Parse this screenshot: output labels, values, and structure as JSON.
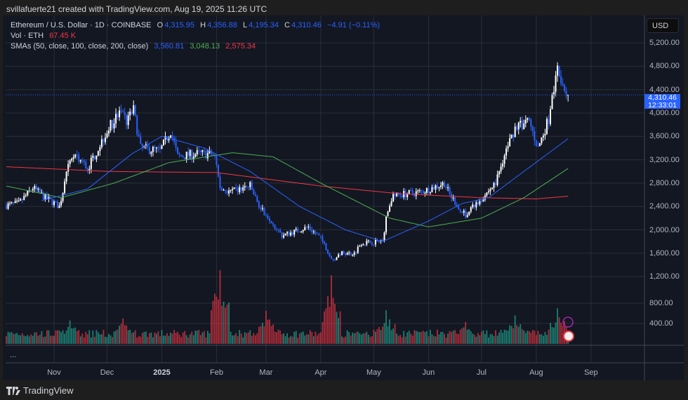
{
  "credit": "svillafuerte21 created with TradingView.com, Aug 19, 2025 11:26 UTC",
  "legend": {
    "symbol": "Ethereum / U.S. Dollar · 1D · COINBASE",
    "o_label": "O",
    "o": "4,315.95",
    "h_label": "H",
    "h": "4,356.88",
    "l_label": "L",
    "l": "4,195.34",
    "c_label": "C",
    "c": "4,310.46",
    "change": "−4.91 (−0.11%)",
    "vol_label": "Vol · ETH",
    "vol": "67.45 K",
    "sma_label": "SMAs (50, close, 100, close, 200, close)",
    "sma50": "3,560.81",
    "sma100": "3,048.13",
    "sma200": "2,575.34"
  },
  "currency_button": "USD",
  "last_price": {
    "price": "4,310.46",
    "countdown": "12:33:01"
  },
  "more_label": "...",
  "brand": "TradingView",
  "colors": {
    "up": "#ffffff",
    "down": "#2962ff",
    "vol_up": "#22ab94",
    "vol_down": "#f23645",
    "sma50": "#2962ff",
    "sma100": "#4caf50",
    "sma200": "#f23645",
    "bg": "#131722",
    "grid": "#2a2e39"
  },
  "chart_data": {
    "type": "candlestick",
    "timeframe": "1D",
    "price_ticks": [
      "5,200.00",
      "4,800.00",
      "4,400.00",
      "4,000.00",
      "3,600.00",
      "3,200.00",
      "2,800.00",
      "2,400.00",
      "2,000.00",
      "1,600.00",
      "1,200.00",
      "800.00",
      "400.00"
    ],
    "price_tick_values": [
      5200,
      4800,
      4400,
      4000,
      3600,
      3200,
      2800,
      2400,
      2000,
      1600,
      1200,
      800,
      400
    ],
    "x_ticks": [
      {
        "label": "Nov",
        "date": "2024-11-01"
      },
      {
        "label": "Dec",
        "date": "2024-12-01"
      },
      {
        "label": "2025",
        "date": "2025-01-01"
      },
      {
        "label": "Feb",
        "date": "2025-02-01"
      },
      {
        "label": "Mar",
        "date": "2025-03-01"
      },
      {
        "label": "Apr",
        "date": "2025-04-01"
      },
      {
        "label": "May",
        "date": "2025-05-01"
      },
      {
        "label": "Jun",
        "date": "2025-06-01"
      },
      {
        "label": "Jul",
        "date": "2025-07-01"
      },
      {
        "label": "Aug",
        "date": "2025-08-01"
      },
      {
        "label": "Sep",
        "date": "2025-09-01"
      }
    ],
    "close": [
      [
        "2024-10-05",
        2420
      ],
      [
        "2024-10-12",
        2450
      ],
      [
        "2024-10-20",
        2720
      ],
      [
        "2024-10-27",
        2550
      ],
      [
        "2024-11-04",
        2400
      ],
      [
        "2024-11-10",
        3200
      ],
      [
        "2024-11-13",
        3300
      ],
      [
        "2024-11-20",
        3050
      ],
      [
        "2024-11-26",
        3400
      ],
      [
        "2024-12-01",
        3700
      ],
      [
        "2024-12-08",
        4000
      ],
      [
        "2024-12-12",
        3850
      ],
      [
        "2024-12-16",
        4050
      ],
      [
        "2024-12-20",
        3400
      ],
      [
        "2024-12-31",
        3350
      ],
      [
        "2025-01-06",
        3700
      ],
      [
        "2025-01-10",
        3250
      ],
      [
        "2025-01-20",
        3300
      ],
      [
        "2025-01-31",
        3300
      ],
      [
        "2025-02-03",
        2700
      ],
      [
        "2025-02-10",
        2650
      ],
      [
        "2025-02-20",
        2750
      ],
      [
        "2025-02-25",
        2400
      ],
      [
        "2025-03-03",
        2200
      ],
      [
        "2025-03-10",
        1900
      ],
      [
        "2025-03-20",
        2000
      ],
      [
        "2025-03-25",
        2050
      ],
      [
        "2025-04-01",
        1850
      ],
      [
        "2025-04-08",
        1480
      ],
      [
        "2025-04-12",
        1600
      ],
      [
        "2025-04-20",
        1600
      ],
      [
        "2025-04-24",
        1780
      ],
      [
        "2025-05-06",
        1800
      ],
      [
        "2025-05-08",
        2200
      ],
      [
        "2025-05-11",
        2550
      ],
      [
        "2025-05-15",
        2600
      ],
      [
        "2025-05-28",
        2650
      ],
      [
        "2025-06-10",
        2800
      ],
      [
        "2025-06-13",
        2600
      ],
      [
        "2025-06-22",
        2250
      ],
      [
        "2025-06-30",
        2500
      ],
      [
        "2025-07-09",
        2800
      ],
      [
        "2025-07-11",
        3000
      ],
      [
        "2025-07-14",
        3300
      ],
      [
        "2025-07-20",
        3750
      ],
      [
        "2025-07-28",
        3850
      ],
      [
        "2025-08-02",
        3400
      ],
      [
        "2025-08-08",
        3900
      ],
      [
        "2025-08-10",
        4250
      ],
      [
        "2025-08-13",
        4750
      ],
      [
        "2025-08-17",
        4450
      ],
      [
        "2025-08-19",
        4310
      ]
    ],
    "sma50": [
      [
        "2024-10-25",
        2500
      ],
      [
        "2024-11-20",
        2700
      ],
      [
        "2024-12-15",
        3300
      ],
      [
        "2025-01-01",
        3600
      ],
      [
        "2025-01-25",
        3400
      ],
      [
        "2025-02-20",
        3000
      ],
      [
        "2025-03-20",
        2400
      ],
      [
        "2025-04-15",
        2000
      ],
      [
        "2025-05-06",
        1800
      ],
      [
        "2025-06-01",
        2150
      ],
      [
        "2025-06-20",
        2450
      ],
      [
        "2025-07-05",
        2550
      ],
      [
        "2025-07-25",
        3000
      ],
      [
        "2025-08-19",
        3560
      ]
    ],
    "sma100": [
      [
        "2024-10-05",
        2750
      ],
      [
        "2024-11-05",
        2550
      ],
      [
        "2024-12-05",
        2800
      ],
      [
        "2025-01-05",
        3150
      ],
      [
        "2025-02-10",
        3320
      ],
      [
        "2025-03-05",
        3250
      ],
      [
        "2025-04-01",
        2800
      ],
      [
        "2025-05-10",
        2200
      ],
      [
        "2025-06-01",
        2050
      ],
      [
        "2025-07-01",
        2200
      ],
      [
        "2025-07-25",
        2550
      ],
      [
        "2025-08-19",
        3050
      ]
    ],
    "sma200": [
      [
        "2024-10-05",
        3080
      ],
      [
        "2024-12-01",
        3000
      ],
      [
        "2025-02-01",
        2980
      ],
      [
        "2025-04-01",
        2750
      ],
      [
        "2025-05-15",
        2620
      ],
      [
        "2025-07-01",
        2550
      ],
      [
        "2025-08-01",
        2530
      ],
      [
        "2025-08-19",
        2575
      ]
    ],
    "volume_k_peaks": [
      [
        "2024-11-10",
        460
      ],
      [
        "2024-12-10",
        500
      ],
      [
        "2025-02-03",
        1450
      ],
      [
        "2025-03-01",
        650
      ],
      [
        "2025-04-07",
        1350
      ],
      [
        "2025-05-08",
        660
      ],
      [
        "2025-06-22",
        430
      ],
      [
        "2025-07-20",
        560
      ],
      [
        "2025-08-13",
        700
      ]
    ]
  }
}
